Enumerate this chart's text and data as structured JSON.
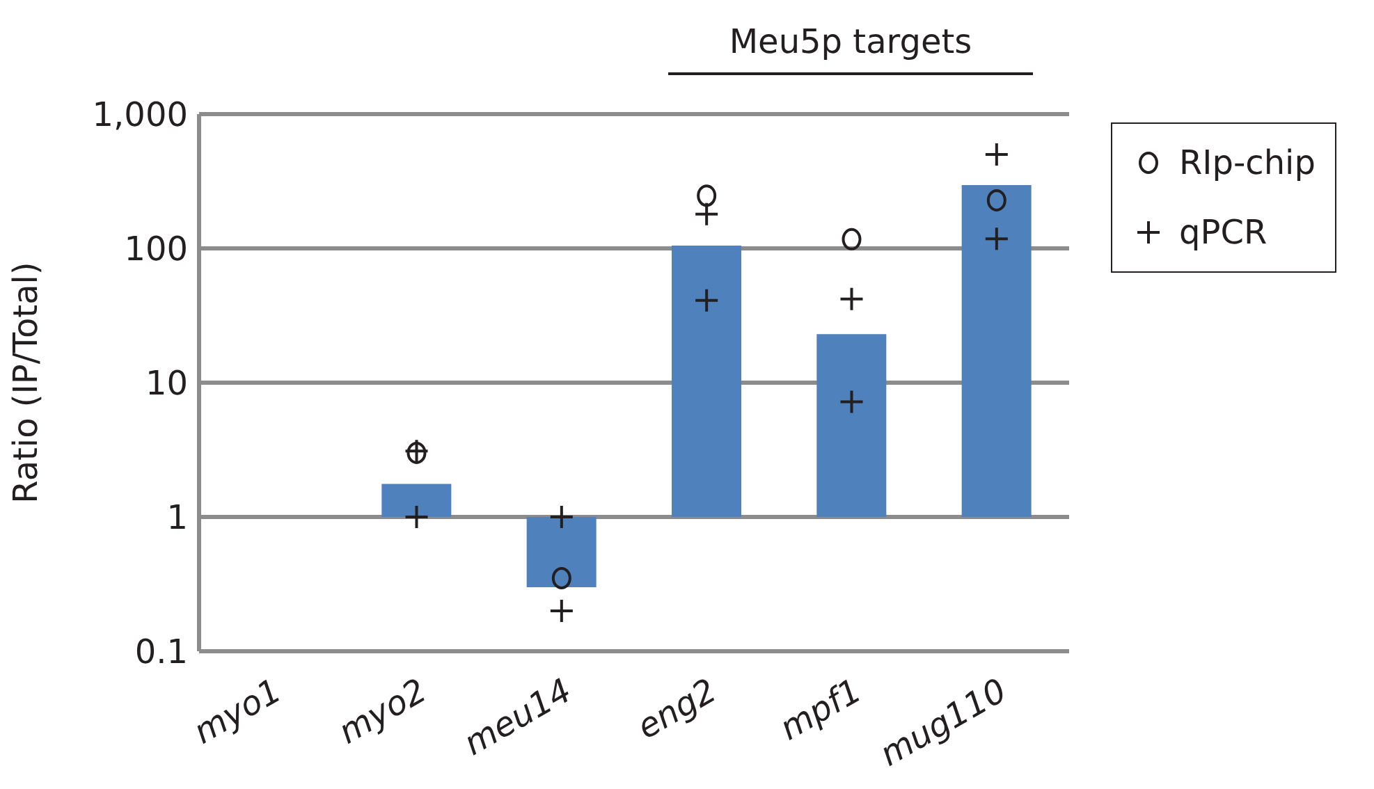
{
  "chart_data": {
    "type": "bar",
    "ylabel": "Ratio (IP/Total)",
    "annotations": [
      "Meu5p targets"
    ],
    "categories": [
      "myo1",
      "myo2",
      "meu14",
      "eng2",
      "mpf1",
      "mug110"
    ],
    "series": [
      {
        "color": "#4f81bd",
        "base": [
          null,
          1,
          1,
          1,
          1,
          1
        ],
        "values": [
          null,
          0.76,
          -0.7,
          104,
          22,
          295
        ]
      },
      {
        "type": "scatter",
        "name": "RIp-chip",
        "marker": "circle",
        "color": "#231f20",
        "values": [
          null,
          3.0,
          0.35,
          247,
          117,
          228
        ]
      },
      {
        "type": "scatter",
        "name": "qPCR",
        "marker": "cross",
        "color": "#231f20",
        "values": [
          null,
          3.1,
          1.0,
          180,
          42,
          500
        ]
      },
      {
        "type": "scatter",
        "marker": "cross",
        "color": "#231f20",
        "values": [
          null,
          1.0,
          0.2,
          41,
          7.2,
          118
        ]
      }
    ],
    "log": "y",
    "ylim": [
      0.1,
      1000
    ],
    "yticks": [
      0.1,
      1,
      10,
      100,
      {
        "value": 1000,
        "label": "1,000"
      }
    ],
    "grid": "y",
    "legend": "top right"
  }
}
